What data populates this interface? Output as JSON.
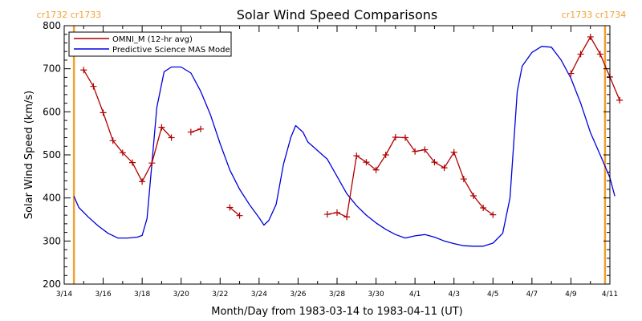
{
  "chart_data": {
    "type": "line",
    "title": "Solar Wind Speed Comparisons",
    "xlabel": "Month/Day from 1983-03-14 to 1983-04-11 (UT)",
    "ylabel": "Solar Wind Speed (km/s)",
    "xlim": [
      "1983-03-14",
      "1983-04-11"
    ],
    "ylim": [
      200,
      800
    ],
    "yticks": [
      200,
      300,
      400,
      500,
      600,
      700,
      800
    ],
    "xticks": [
      {
        "date": "1983-03-14",
        "label": "3/14"
      },
      {
        "date": "1983-03-16",
        "label": "3/16"
      },
      {
        "date": "1983-03-18",
        "label": "3/18"
      },
      {
        "date": "1983-03-20",
        "label": "3/20"
      },
      {
        "date": "1983-03-22",
        "label": "3/22"
      },
      {
        "date": "1983-03-24",
        "label": "3/24"
      },
      {
        "date": "1983-03-26",
        "label": "3/26"
      },
      {
        "date": "1983-03-28",
        "label": "3/28"
      },
      {
        "date": "1983-03-30",
        "label": "3/30"
      },
      {
        "date": "1983-04-01",
        "label": "4/1"
      },
      {
        "date": "1983-04-03",
        "label": "4/3"
      },
      {
        "date": "1983-04-05",
        "label": "4/5"
      },
      {
        "date": "1983-04-07",
        "label": "4/7"
      },
      {
        "date": "1983-04-09",
        "label": "4/9"
      },
      {
        "date": "1983-04-11",
        "label": "4/11"
      }
    ],
    "legend": {
      "placement": "top-left"
    },
    "carrington_markers": [
      {
        "date": "1983-03-14 12:00",
        "label": "cr1732 cr1733",
        "color": "#f0a030",
        "side": "left"
      },
      {
        "date": "1983-04-10 18:00",
        "label": "cr1733 cr1734",
        "color": "#f0a030",
        "side": "right"
      }
    ],
    "series": [
      {
        "name": "OMNI_M (12-hr avg)",
        "color": "#b00000",
        "marker": "+",
        "segments": [
          [
            [
              "1983-03-15 00:00",
              697
            ],
            [
              "1983-03-15 12:00",
              659
            ],
            [
              "1983-03-16 00:00",
              598
            ],
            [
              "1983-03-16 12:00",
              533
            ],
            [
              "1983-03-17 00:00",
              505
            ],
            [
              "1983-03-17 12:00",
              482
            ],
            [
              "1983-03-18 00:00",
              438
            ],
            [
              "1983-03-18 12:00",
              481
            ],
            [
              "1983-03-19 00:00",
              564
            ],
            [
              "1983-03-19 12:00",
              540
            ]
          ],
          [
            [
              "1983-03-20 12:00",
              553
            ],
            [
              "1983-03-21 00:00",
              560
            ]
          ],
          [
            [
              "1983-03-22 12:00",
              378
            ],
            [
              "1983-03-23 00:00",
              359
            ]
          ],
          [
            [
              "1983-03-27 12:00",
              362
            ],
            [
              "1983-03-28 00:00",
              366
            ],
            [
              "1983-03-28 12:00",
              356
            ],
            [
              "1983-03-29 00:00",
              498
            ],
            [
              "1983-03-29 12:00",
              483
            ],
            [
              "1983-03-30 00:00",
              465
            ],
            [
              "1983-03-30 12:00",
              500
            ],
            [
              "1983-03-31 00:00",
              541
            ],
            [
              "1983-03-31 12:00",
              540
            ],
            [
              "1983-04-01 00:00",
              508
            ],
            [
              "1983-04-01 12:00",
              512
            ],
            [
              "1983-04-02 00:00",
              483
            ],
            [
              "1983-04-02 12:00",
              470
            ],
            [
              "1983-04-03 00:00",
              506
            ],
            [
              "1983-04-03 12:00",
              444
            ],
            [
              "1983-04-04 00:00",
              405
            ],
            [
              "1983-04-04 12:00",
              377
            ],
            [
              "1983-04-05 00:00",
              361
            ]
          ],
          [
            [
              "1983-04-09 00:00",
              689
            ],
            [
              "1983-04-09 12:00",
              734
            ],
            [
              "1983-04-10 00:00",
              774
            ],
            [
              "1983-04-10 12:00",
              734
            ],
            [
              "1983-04-11 00:00",
              681
            ],
            [
              "1983-04-11 12:00",
              627
            ]
          ]
        ]
      },
      {
        "name": "Predictive Science MAS Model",
        "color": "#0000dd",
        "points": [
          [
            "1983-03-14 12:00",
            404
          ],
          [
            "1983-03-14 18:00",
            378
          ],
          [
            "1983-03-15 06:00",
            355
          ],
          [
            "1983-03-15 18:00",
            335
          ],
          [
            "1983-03-16 06:00",
            318
          ],
          [
            "1983-03-16 18:00",
            307
          ],
          [
            "1983-03-17 06:00",
            307
          ],
          [
            "1983-03-17 18:00",
            309
          ],
          [
            "1983-03-18 00:00",
            313
          ],
          [
            "1983-03-18 06:00",
            352
          ],
          [
            "1983-03-18 12:00",
            480
          ],
          [
            "1983-03-18 18:00",
            610
          ],
          [
            "1983-03-19 03:00",
            693
          ],
          [
            "1983-03-19 12:00",
            704
          ],
          [
            "1983-03-20 00:00",
            704
          ],
          [
            "1983-03-20 12:00",
            690
          ],
          [
            "1983-03-21 00:00",
            648
          ],
          [
            "1983-03-21 12:00",
            594
          ],
          [
            "1983-03-22 00:00",
            526
          ],
          [
            "1983-03-22 12:00",
            465
          ],
          [
            "1983-03-23 00:00",
            420
          ],
          [
            "1983-03-23 12:00",
            385
          ],
          [
            "1983-03-24 00:00",
            354
          ],
          [
            "1983-03-24 06:00",
            337
          ],
          [
            "1983-03-24 12:00",
            348
          ],
          [
            "1983-03-24 21:00",
            385
          ],
          [
            "1983-03-25 06:00",
            478
          ],
          [
            "1983-03-25 15:00",
            540
          ],
          [
            "1983-03-25 21:00",
            568
          ],
          [
            "1983-03-26 06:00",
            553
          ],
          [
            "1983-03-26 12:00",
            530
          ],
          [
            "1983-03-27 00:00",
            510
          ],
          [
            "1983-03-27 12:00",
            490
          ],
          [
            "1983-03-28 00:00",
            450
          ],
          [
            "1983-03-28 12:00",
            410
          ],
          [
            "1983-03-29 00:00",
            382
          ],
          [
            "1983-03-29 12:00",
            360
          ],
          [
            "1983-03-30 00:00",
            342
          ],
          [
            "1983-03-30 12:00",
            327
          ],
          [
            "1983-03-31 00:00",
            315
          ],
          [
            "1983-03-31 12:00",
            307
          ],
          [
            "1983-04-01 00:00",
            312
          ],
          [
            "1983-04-01 12:00",
            315
          ],
          [
            "1983-04-02 00:00",
            309
          ],
          [
            "1983-04-02 12:00",
            300
          ],
          [
            "1983-04-03 00:00",
            294
          ],
          [
            "1983-04-03 12:00",
            289
          ],
          [
            "1983-04-04 00:00",
            288
          ],
          [
            "1983-04-04 12:00",
            288
          ],
          [
            "1983-04-05 00:00",
            295
          ],
          [
            "1983-04-05 12:00",
            318
          ],
          [
            "1983-04-05 21:00",
            400
          ],
          [
            "1983-04-06 06:00",
            648
          ],
          [
            "1983-04-06 12:00",
            706
          ],
          [
            "1983-04-07 00:00",
            738
          ],
          [
            "1983-04-07 12:00",
            752
          ],
          [
            "1983-04-08 00:00",
            750
          ],
          [
            "1983-04-08 12:00",
            720
          ],
          [
            "1983-04-09 00:00",
            678
          ],
          [
            "1983-04-09 12:00",
            620
          ],
          [
            "1983-04-10 00:00",
            552
          ],
          [
            "1983-04-10 12:00",
            500
          ],
          [
            "1983-04-11 00:00",
            447
          ],
          [
            "1983-04-11 06:00",
            404
          ]
        ]
      }
    ]
  }
}
